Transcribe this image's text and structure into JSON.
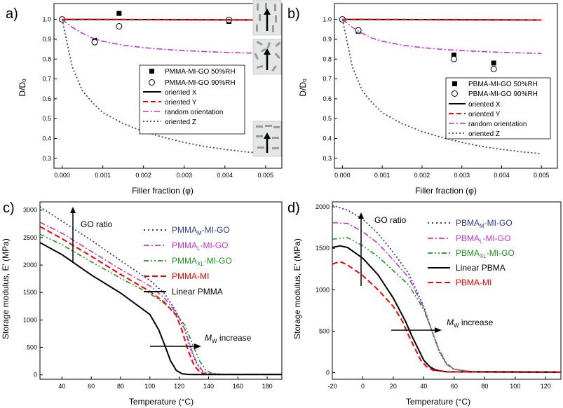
{
  "chart_data": [
    {
      "panel": "a)",
      "type": "scatter",
      "xlabel": "Filler fraction (φ)",
      "ylabel": "D/Dₒ",
      "xlim": [
        -0.0002,
        0.0054
      ],
      "ylim": [
        0.25,
        1.08
      ],
      "xticks": [
        "0.000",
        "0.001",
        "0.002",
        "0.003",
        "0.004",
        "0.005"
      ],
      "xtick_values": [
        0,
        0.001,
        0.002,
        0.003,
        0.004,
        0.005
      ],
      "yticks": [
        "0.3",
        "0.4",
        "0.5",
        "0.6",
        "0.7",
        "0.8",
        "0.9",
        "1.0"
      ],
      "ytick_values": [
        0.3,
        0.4,
        0.5,
        0.6,
        0.7,
        0.8,
        0.9,
        1.0
      ],
      "legend": [
        {
          "label": "PMMA-MI-GO 50%RH",
          "marker": "square"
        },
        {
          "label": "PMMA-MI-GO 90%RH",
          "marker": "circle"
        },
        {
          "label": "oriented X",
          "style": "solid",
          "color": "#000000"
        },
        {
          "label": "oriented Y",
          "style": "dashed",
          "color": "#ff0000"
        },
        {
          "label": "random orientation",
          "style": "dashdot",
          "color": "#cc33cc"
        },
        {
          "label": "oriented Z",
          "style": "dotted",
          "color": "#2b3f9e"
        }
      ],
      "series": [
        {
          "name": "PMMA-MI-GO 50%RH",
          "x": [
            0,
            0.0008,
            0.0014,
            0.0041
          ],
          "y": [
            1.0,
            0.895,
            1.03,
            0.99
          ]
        },
        {
          "name": "PMMA-MI-GO 90%RH",
          "x": [
            0,
            0.0008,
            0.0014,
            0.0041
          ],
          "y": [
            1.0,
            0.885,
            0.965,
            0.998
          ]
        },
        {
          "name": "oriented X",
          "x": [
            0,
            0.005
          ],
          "y": [
            1.0,
            0.997
          ]
        },
        {
          "name": "oriented Y",
          "x": [
            0,
            0.005
          ],
          "y": [
            1.0,
            0.997
          ]
        },
        {
          "name": "random orientation",
          "x": [
            0,
            0.00025,
            0.0005,
            0.00075,
            0.001,
            0.0015,
            0.002,
            0.0025,
            0.003,
            0.0035,
            0.004,
            0.0045,
            0.005
          ],
          "y": [
            1.0,
            0.96,
            0.93,
            0.905,
            0.89,
            0.87,
            0.858,
            0.849,
            0.843,
            0.838,
            0.834,
            0.831,
            0.828
          ]
        },
        {
          "name": "oriented Z",
          "x": [
            0,
            0.00025,
            0.0005,
            0.00075,
            0.001,
            0.0015,
            0.002,
            0.0025,
            0.003,
            0.0035,
            0.004,
            0.0045,
            0.005
          ],
          "y": [
            1.0,
            0.76,
            0.64,
            0.58,
            0.53,
            0.475,
            0.435,
            0.405,
            0.38,
            0.36,
            0.345,
            0.333,
            0.323
          ]
        }
      ]
    },
    {
      "panel": "b)",
      "type": "scatter",
      "xlabel": "Filler fraction (φ)",
      "ylabel": "D/Dₒ",
      "xlim": [
        -0.0002,
        0.0054
      ],
      "ylim": [
        0.25,
        1.08
      ],
      "xticks": [
        "0.000",
        "0.001",
        "0.002",
        "0.003",
        "0.004",
        "0.005"
      ],
      "xtick_values": [
        0,
        0.001,
        0.002,
        0.003,
        0.004,
        0.005
      ],
      "yticks": [
        "0.3",
        "0.4",
        "0.5",
        "0.6",
        "0.7",
        "0.8",
        "0.9",
        "1.0"
      ],
      "ytick_values": [
        0.3,
        0.4,
        0.5,
        0.6,
        0.7,
        0.8,
        0.9,
        1.0
      ],
      "legend": [
        {
          "label": "PBMA-MI-GO 50%RH",
          "marker": "square"
        },
        {
          "label": "PBMA-MI-GO 90%RH",
          "marker": "circle"
        },
        {
          "label": "oriented X",
          "style": "solid",
          "color": "#000000"
        },
        {
          "label": "oriented Y",
          "style": "dashed",
          "color": "#ff0000"
        },
        {
          "label": "random orientation",
          "style": "dashdot",
          "color": "#cc33cc"
        },
        {
          "label": "oriented Z",
          "style": "dotted",
          "color": "#2b3f9e"
        }
      ],
      "series": [
        {
          "name": "PBMA-MI-GO 50%RH",
          "x": [
            0,
            0.0004,
            0.0028,
            0.0038
          ],
          "y": [
            1.0,
            0.94,
            0.82,
            0.78
          ]
        },
        {
          "name": "PBMA-MI-GO 90%RH",
          "x": [
            0,
            0.0004,
            0.0028,
            0.0038
          ],
          "y": [
            1.0,
            0.945,
            0.8,
            0.75
          ]
        },
        {
          "name": "oriented X",
          "x": [
            0,
            0.005
          ],
          "y": [
            1.0,
            0.997
          ]
        },
        {
          "name": "oriented Y",
          "x": [
            0,
            0.005
          ],
          "y": [
            1.0,
            0.997
          ]
        },
        {
          "name": "random orientation",
          "x": [
            0,
            0.00025,
            0.0005,
            0.00075,
            0.001,
            0.0015,
            0.002,
            0.0025,
            0.003,
            0.0035,
            0.004,
            0.0045,
            0.005
          ],
          "y": [
            1.0,
            0.96,
            0.93,
            0.905,
            0.89,
            0.87,
            0.858,
            0.849,
            0.843,
            0.838,
            0.834,
            0.831,
            0.828
          ]
        },
        {
          "name": "oriented Z",
          "x": [
            0,
            0.00025,
            0.0005,
            0.00075,
            0.001,
            0.0015,
            0.002,
            0.0025,
            0.003,
            0.0035,
            0.004,
            0.0045,
            0.005
          ],
          "y": [
            1.0,
            0.76,
            0.64,
            0.58,
            0.53,
            0.475,
            0.435,
            0.405,
            0.38,
            0.36,
            0.345,
            0.333,
            0.323
          ]
        }
      ]
    },
    {
      "panel": "c)",
      "type": "line",
      "xlabel": "Temperature (°C)",
      "ylabel": "Storage modulus, E' (MPa)",
      "xlim": [
        25,
        190
      ],
      "ylim": [
        -80,
        3150
      ],
      "xticks": [
        "40",
        "60",
        "80",
        "100",
        "120",
        "140",
        "160",
        "180"
      ],
      "xtick_values": [
        40,
        60,
        80,
        100,
        120,
        140,
        160,
        180
      ],
      "yticks": [
        "0",
        "500",
        "1000",
        "1500",
        "2000",
        "2500",
        "3000"
      ],
      "ytick_values": [
        0,
        500,
        1000,
        1500,
        2000,
        2500,
        3000
      ],
      "annotations": {
        "go_ratio": "GO ratio",
        "mw_prefix": "M",
        "mw_sub": "W",
        "mw_suffix": " increase"
      },
      "legend": [
        {
          "base": "PMMA",
          "sub": "M",
          "rest": "-MI-GO",
          "style": "dotted",
          "color": "#2b3f9e"
        },
        {
          "base": "PMMA",
          "sub": "L",
          "rest": "-MI-GO",
          "style": "dashdot",
          "color": "#cc33cc"
        },
        {
          "base": "PMMA",
          "sub": "XL",
          "rest": "-MI-GO",
          "style": "dashdotdot",
          "color": "#1a9a1a"
        },
        {
          "base": "PMMA-MI",
          "sub": "",
          "rest": "",
          "style": "dashed",
          "color": "#ff0000"
        },
        {
          "base": "Linear PMMA",
          "sub": "",
          "rest": "",
          "style": "solid",
          "color": "#000000"
        }
      ],
      "series": [
        {
          "name": "PMMA_M-MI-GO",
          "x": [
            25,
            40,
            60,
            80,
            100,
            110,
            118,
            124,
            128,
            132,
            136,
            140,
            150,
            190
          ],
          "y": [
            3060,
            2800,
            2450,
            2080,
            1720,
            1480,
            1150,
            800,
            450,
            200,
            60,
            20,
            10,
            10
          ]
        },
        {
          "name": "PMMA_L-MI-GO",
          "x": [
            25,
            40,
            60,
            80,
            100,
            110,
            118,
            124,
            128,
            132,
            136,
            140,
            150,
            190
          ],
          "y": [
            2780,
            2580,
            2250,
            1920,
            1620,
            1400,
            1130,
            820,
            480,
            220,
            70,
            20,
            10,
            10
          ]
        },
        {
          "name": "PMMA_XL-MI-GO",
          "x": [
            25,
            40,
            60,
            80,
            100,
            110,
            118,
            124,
            130,
            134,
            138,
            142,
            150,
            190
          ],
          "y": [
            2560,
            2370,
            2060,
            1760,
            1480,
            1300,
            1100,
            900,
            500,
            250,
            90,
            30,
            10,
            10
          ]
        },
        {
          "name": "PMMA-MI",
          "x": [
            25,
            40,
            60,
            80,
            100,
            110,
            118,
            122,
            126,
            130,
            134,
            138,
            150,
            190
          ],
          "y": [
            2700,
            2480,
            2160,
            1830,
            1520,
            1320,
            1080,
            800,
            450,
            180,
            50,
            15,
            10,
            10
          ]
        },
        {
          "name": "Linear PMMA",
          "x": [
            25,
            40,
            60,
            80,
            100,
            106,
            110,
            114,
            118,
            122,
            126,
            130,
            190
          ],
          "y": [
            2410,
            2190,
            1820,
            1490,
            1100,
            820,
            550,
            260,
            80,
            20,
            8,
            5,
            5
          ]
        }
      ]
    },
    {
      "panel": "d)",
      "type": "line",
      "xlabel": "Temperature (°C)",
      "ylabel": "Storage modulus, E' (MPa)",
      "xlim": [
        -20,
        130
      ],
      "ylim": [
        -80,
        2060
      ],
      "xticks": [
        "-20",
        "0",
        "20",
        "40",
        "60",
        "80",
        "100",
        "120"
      ],
      "xtick_values": [
        -20,
        0,
        20,
        40,
        60,
        80,
        100,
        120
      ],
      "yticks": [
        "0",
        "500",
        "1000",
        "1500",
        "2000"
      ],
      "ytick_values": [
        0,
        500,
        1000,
        1500,
        2000
      ],
      "annotations": {
        "go_ratio": "GO ratio",
        "mw_prefix": "M",
        "mw_sub": "W",
        "mw_suffix": " increase"
      },
      "legend": [
        {
          "base": "PBMA",
          "sub": "M",
          "rest": "-MI-GO",
          "style": "dotted",
          "color": "#2b3f9e"
        },
        {
          "base": "PBMA",
          "sub": "L",
          "rest": "-MI-GO",
          "style": "dashdot",
          "color": "#cc33cc"
        },
        {
          "base": "PBMA",
          "sub": "XL",
          "rest": "-MI-GO",
          "style": "dashdotdot",
          "color": "#1a9a1a"
        },
        {
          "base": "Linear PBMA",
          "sub": "",
          "rest": "",
          "style": "solid",
          "color": "#000000"
        },
        {
          "base": "PBMA-MI",
          "sub": "",
          "rest": "",
          "style": "dashed",
          "color": "#ff0000"
        }
      ],
      "series": [
        {
          "name": "PBMA_M-MI-GO",
          "x": [
            -20,
            -10,
            0,
            10,
            20,
            30,
            40,
            45,
            50,
            55,
            60,
            70,
            130
          ],
          "y": [
            2020,
            1960,
            1850,
            1680,
            1450,
            1200,
            800,
            520,
            260,
            100,
            40,
            15,
            10
          ]
        },
        {
          "name": "PBMA_L-MI-GO",
          "x": [
            -20,
            -10,
            0,
            10,
            20,
            30,
            40,
            45,
            50,
            55,
            60,
            70,
            130
          ],
          "y": [
            1810,
            1800,
            1700,
            1560,
            1360,
            1150,
            780,
            520,
            270,
            100,
            40,
            15,
            10
          ]
        },
        {
          "name": "PBMA_XL-MI-GO",
          "x": [
            -20,
            -10,
            0,
            10,
            20,
            30,
            40,
            45,
            50,
            55,
            60,
            70,
            130
          ],
          "y": [
            1610,
            1630,
            1530,
            1400,
            1230,
            1060,
            760,
            520,
            280,
            110,
            40,
            15,
            10
          ]
        },
        {
          "name": "Linear PBMA",
          "x": [
            -20,
            -15,
            -10,
            0,
            10,
            20,
            28,
            32,
            36,
            40,
            44,
            48,
            55,
            130
          ],
          "y": [
            1510,
            1530,
            1510,
            1380,
            1180,
            900,
            620,
            450,
            300,
            150,
            70,
            30,
            10,
            5
          ]
        },
        {
          "name": "PBMA-MI",
          "x": [
            -20,
            -15,
            -10,
            0,
            10,
            20,
            26,
            30,
            34,
            38,
            42,
            46,
            55,
            130
          ],
          "y": [
            1310,
            1340,
            1300,
            1170,
            1000,
            800,
            620,
            450,
            300,
            150,
            70,
            30,
            10,
            5
          ]
        }
      ]
    }
  ]
}
